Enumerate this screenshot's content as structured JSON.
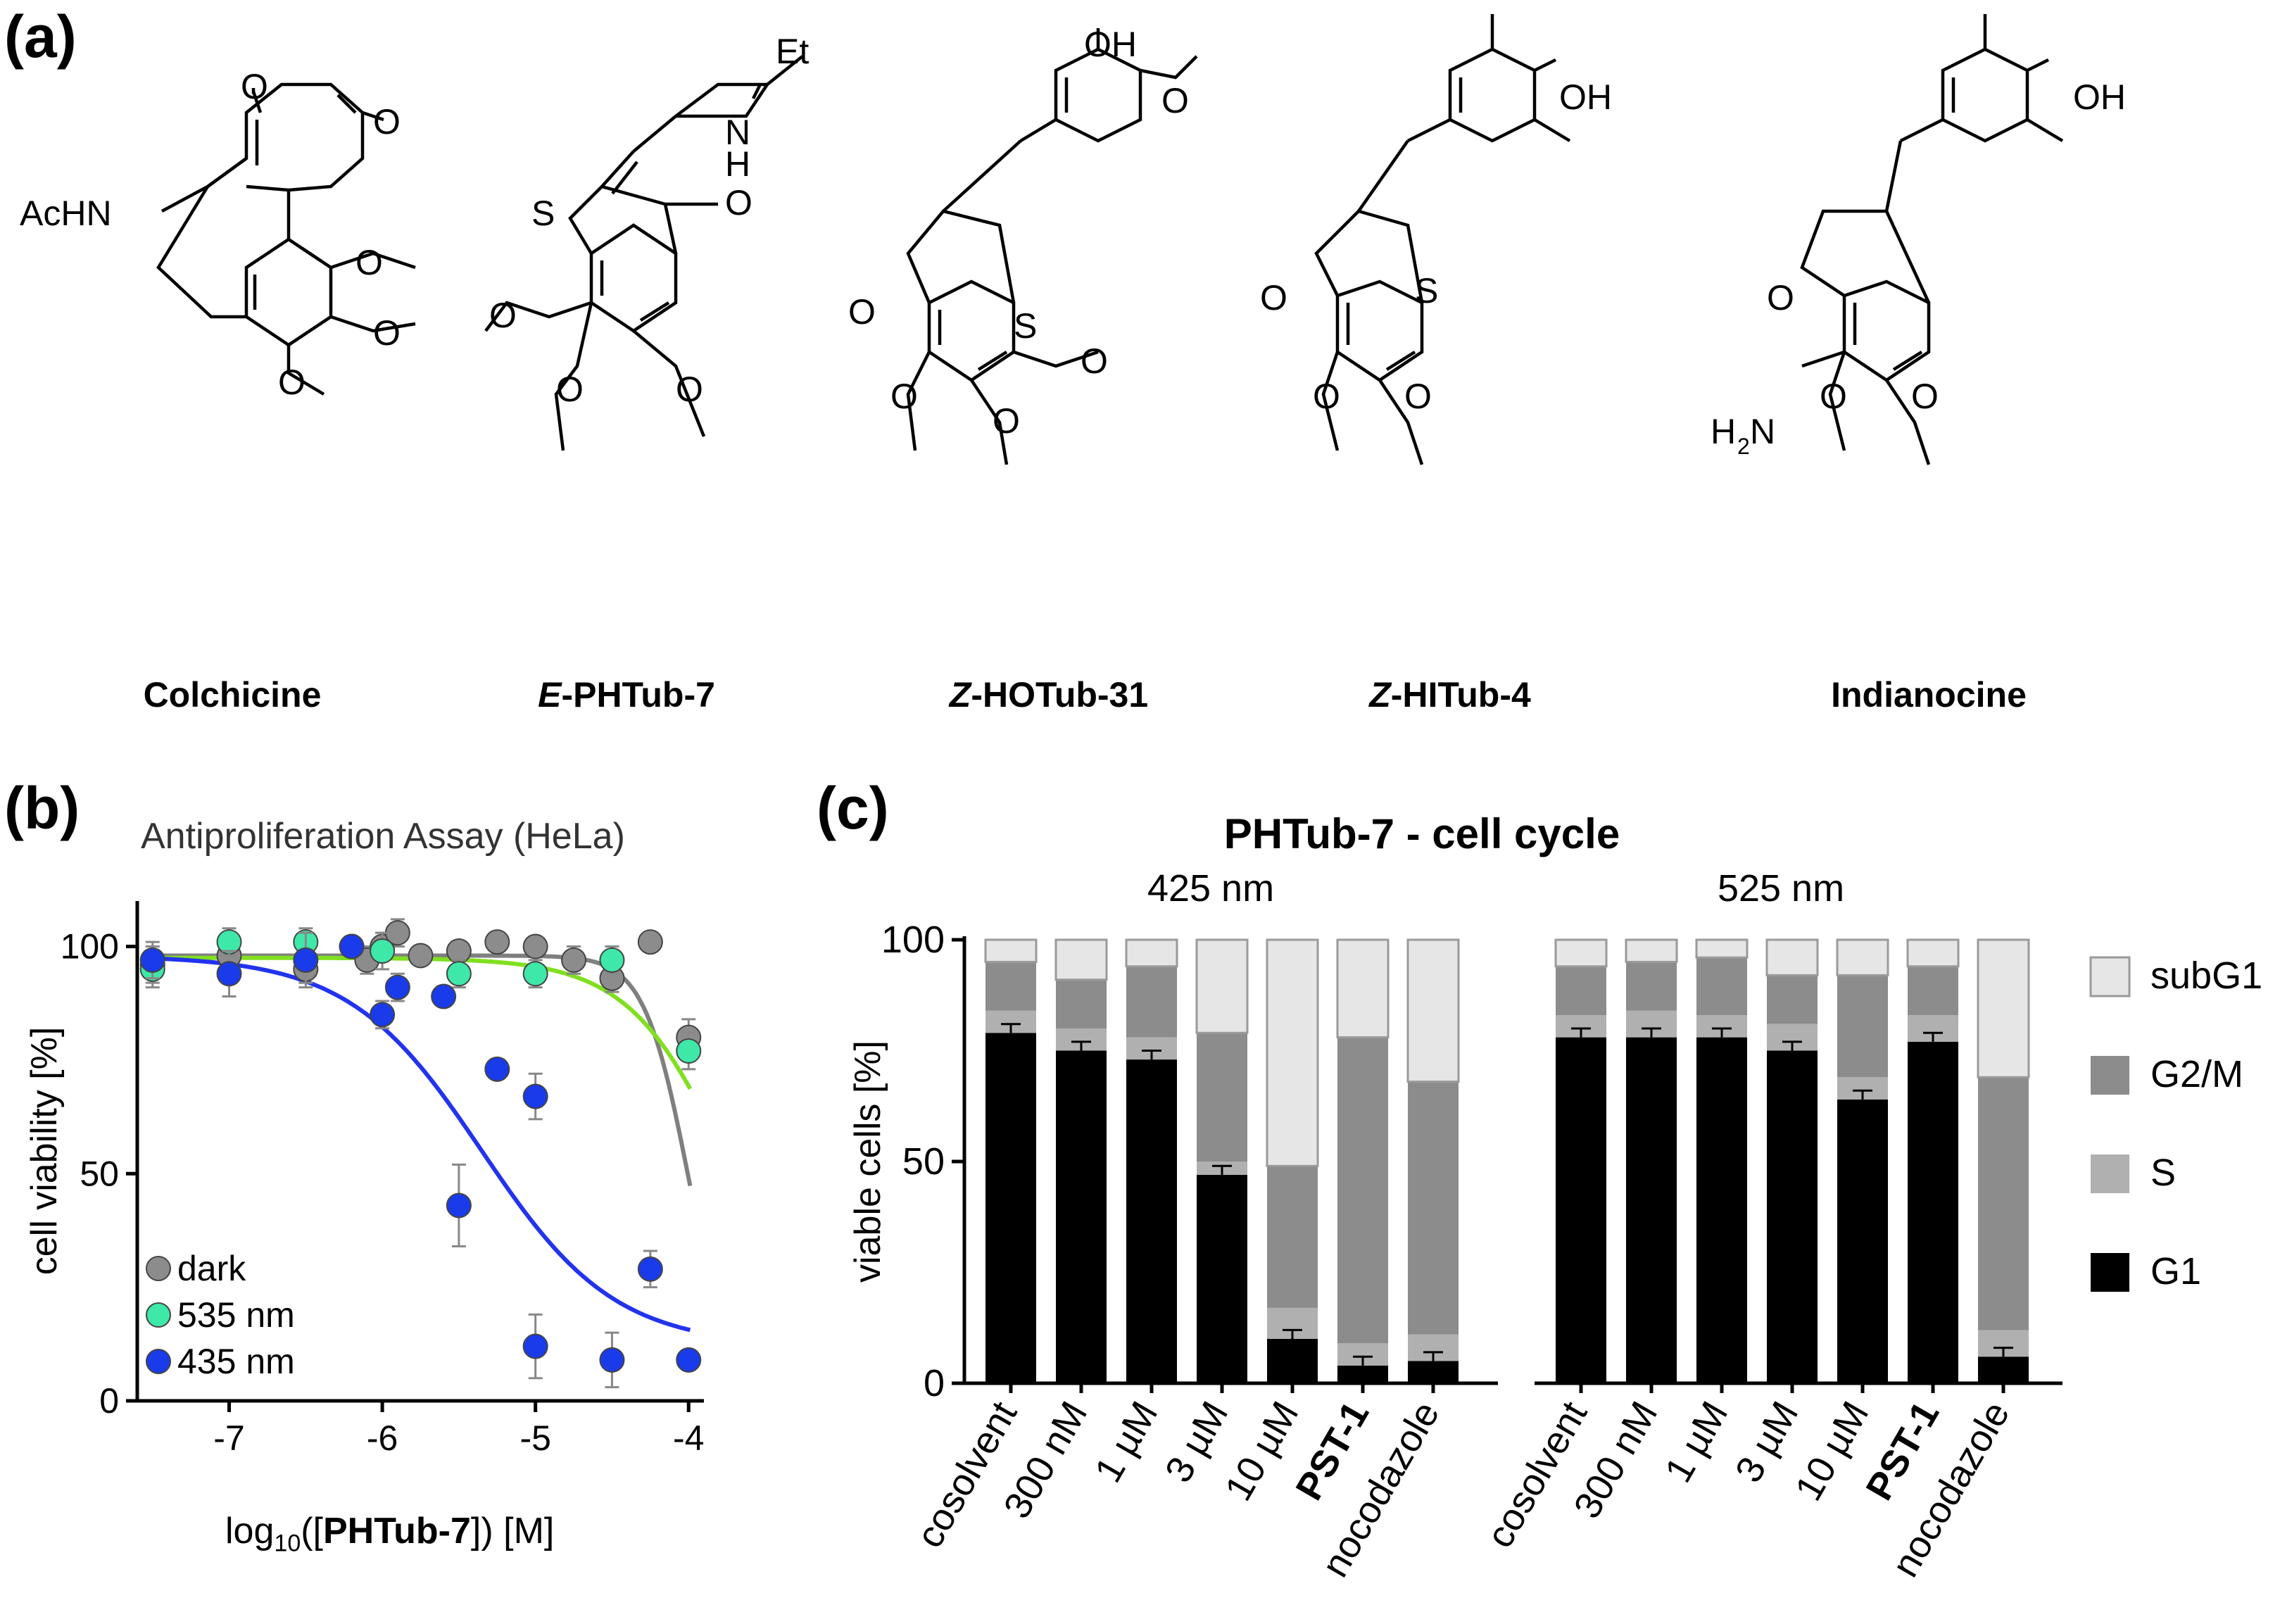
{
  "panel_a": {
    "label": "(a)",
    "compounds": [
      {
        "prefix": "",
        "name": "Colchicine"
      },
      {
        "prefix": "E",
        "name": "-PHTub-7"
      },
      {
        "prefix": "Z",
        "name": "-HOTub-31"
      },
      {
        "prefix": "Z",
        "name": "-HITub-4"
      },
      {
        "prefix": "",
        "name": "Indianocine"
      }
    ],
    "atoms": {
      "o": "O",
      "oh": "OH",
      "s": "S",
      "et": "Et",
      "h": "H",
      "n": "N",
      "achn": "AcHN",
      "h2n_h": "H",
      "h2n_sub": "2",
      "h2n_n": "N"
    }
  },
  "chart_data": [
    {
      "type": "scatter",
      "panel_label": "(b)",
      "title": "Antiproliferation Assay (HeLa)",
      "xlabel_prefix": "log",
      "xlabel_sub": "10",
      "xlabel_open": "([",
      "xlabel_bold": "PHTub-7",
      "xlabel_close": "]) [M]",
      "ylabel": "cell viability [%]",
      "xlim": [
        -7.6,
        -3.9
      ],
      "ylim": [
        0,
        110
      ],
      "xticks": [
        -7,
        -6,
        -5,
        -4
      ],
      "yticks": [
        0,
        50,
        100
      ],
      "legend_position": "bottom-left",
      "series": [
        {
          "name": "dark",
          "color": "#8c8c8c",
          "curve_color": "#7f7f7f",
          "x": [
            -7.5,
            -7.0,
            -6.5,
            -6.2,
            -6.1,
            -6.0,
            -5.9,
            -5.75,
            -5.5,
            -5.25,
            -5.0,
            -4.75,
            -4.5,
            -4.25,
            -4.0
          ],
          "y": [
            96,
            98,
            95,
            100,
            97,
            100,
            103,
            98,
            99,
            101,
            100,
            97,
            93,
            101,
            80
          ],
          "err": [
            4,
            4,
            3,
            2,
            3,
            3,
            3,
            2,
            2,
            2,
            2,
            3,
            3,
            2,
            4
          ]
        },
        {
          "name": "535 nm",
          "color": "#3ee8a8",
          "curve_color": "#80e020",
          "x": [
            -7.5,
            -7.0,
            -6.5,
            -6.0,
            -5.5,
            -5.0,
            -4.5,
            -4.0
          ],
          "y": [
            95,
            101,
            101,
            99,
            94,
            94,
            97,
            77
          ],
          "err": [
            4,
            3,
            3,
            4,
            3,
            3,
            3,
            4
          ]
        },
        {
          "name": "435 nm",
          "color": "#1a3bea",
          "curve_color": "#2233ee",
          "x": [
            -7.5,
            -7.0,
            -6.5,
            -6.2,
            -6.0,
            -5.9,
            -5.6,
            -5.5,
            -5.25,
            -5.0,
            -5.0,
            -4.5,
            -4.25,
            -4.0
          ],
          "y": [
            97,
            94,
            97,
            100,
            85,
            91,
            89,
            43,
            73,
            67,
            12,
            9,
            29,
            9
          ],
          "err": [
            4,
            5,
            6,
            2,
            3,
            3,
            2,
            9,
            2,
            5,
            7,
            6,
            4,
            2
          ]
        }
      ]
    },
    {
      "type": "bar",
      "stacked": true,
      "panel_label": "(c)",
      "title": "PHTub-7 - cell cycle",
      "ylabel": "viable cells [%]",
      "ylim": [
        0,
        100
      ],
      "yticks": [
        0,
        50,
        100
      ],
      "legend_position": "right",
      "groups": [
        {
          "label": "425 nm",
          "categories": [
            "cosolvent",
            "300 nM",
            "1 µM",
            "3 µM",
            "10 µM",
            "PST-1",
            "nocodazole"
          ]
        },
        {
          "label": "525 nm",
          "categories": [
            "cosolvent",
            "300 nM",
            "1 µM",
            "3 µM",
            "10 µM",
            "PST-1",
            "nocodazole"
          ]
        }
      ],
      "bold_categories": [
        "PST-1"
      ],
      "series": [
        {
          "name": "G1",
          "color": "#000000",
          "values": [
            [
              79,
              75,
              73,
              47,
              10,
              4,
              5
            ],
            [
              78,
              78,
              78,
              75,
              64,
              77,
              6
            ]
          ]
        },
        {
          "name": "S",
          "color": "#b0b0b0",
          "values": [
            [
              5,
              5,
              5,
              3,
              7,
              5,
              6
            ],
            [
              5,
              6,
              5,
              6,
              5,
              6,
              6
            ]
          ]
        },
        {
          "name": "G2/M",
          "color": "#8c8c8c",
          "values": [
            [
              11,
              11,
              16,
              29,
              32,
              69,
              57
            ],
            [
              11,
              11,
              13,
              11,
              23,
              11,
              57
            ]
          ]
        },
        {
          "name": "subG1",
          "color": "#e6e6e6",
          "values": [
            [
              5,
              9,
              6,
              21,
              51,
              22,
              32
            ],
            [
              6,
              5,
              4,
              8,
              8,
              6,
              31
            ]
          ]
        }
      ]
    }
  ]
}
